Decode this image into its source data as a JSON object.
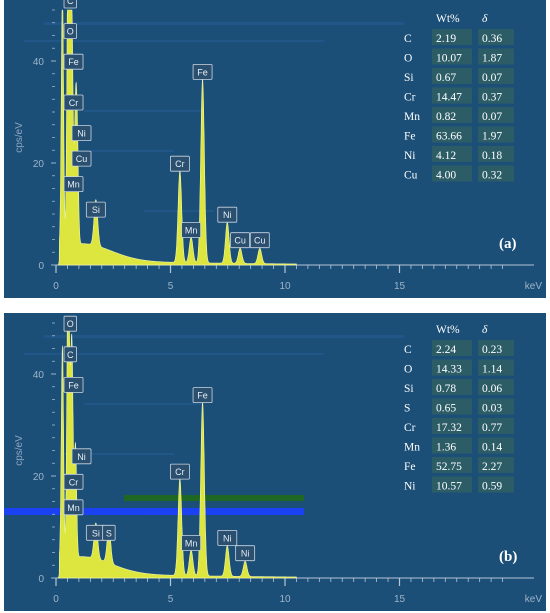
{
  "chart_data": [
    {
      "type": "area",
      "panel_label": "(a)",
      "ylabel": "cps/eV",
      "xunit": "keV",
      "xlim": [
        0,
        20
      ],
      "ylim": [
        0,
        50
      ],
      "x_ticks": [
        "0",
        "5",
        "10",
        "15"
      ],
      "y_ticks": [
        "0",
        "20",
        "40"
      ],
      "grid": false,
      "peaks": [
        {
          "label": "C",
          "x": 0.28,
          "y": 50
        },
        {
          "label": "O",
          "x": 0.52,
          "y": 44
        },
        {
          "label": "Fe",
          "x": 0.7,
          "y": 38
        },
        {
          "label": "Cr",
          "x": 0.57,
          "y": 30
        },
        {
          "label": "Ni",
          "x": 0.85,
          "y": 24
        },
        {
          "label": "Cu",
          "x": 0.93,
          "y": 19
        },
        {
          "label": "Mn",
          "x": 0.64,
          "y": 14
        },
        {
          "label": "Si",
          "x": 1.74,
          "y": 9
        },
        {
          "label": "Cr",
          "x": 5.41,
          "y": 18
        },
        {
          "label": "Mn",
          "x": 5.9,
          "y": 5
        },
        {
          "label": "Fe",
          "x": 6.4,
          "y": 36
        },
        {
          "label": "Ni",
          "x": 7.48,
          "y": 8
        },
        {
          "label": "Cu",
          "x": 8.04,
          "y": 3
        },
        {
          "label": "Cu",
          "x": 8.9,
          "y": 3
        }
      ],
      "legend_table": {
        "headers": [
          "",
          "Wt%",
          "δ"
        ],
        "rows": [
          [
            "C",
            "2.19",
            "0.36"
          ],
          [
            "O",
            "10.07",
            "1.87"
          ],
          [
            "Si",
            "0.67",
            "0.07"
          ],
          [
            "Cr",
            "14.47",
            "0.37"
          ],
          [
            "Mn",
            "0.82",
            "0.07"
          ],
          [
            "Fe",
            "63.66",
            "1.97"
          ],
          [
            "Ni",
            "4.12",
            "0.18"
          ],
          [
            "Cu",
            "4.00",
            "0.32"
          ]
        ]
      }
    },
    {
      "type": "area",
      "panel_label": "(b)",
      "ylabel": "cps/eV",
      "xunit": "keV",
      "xlim": [
        0,
        20
      ],
      "ylim": [
        0,
        50
      ],
      "x_ticks": [
        "0",
        "5",
        "10",
        "15"
      ],
      "y_ticks": [
        "0",
        "20",
        "40"
      ],
      "grid": false,
      "peaks": [
        {
          "label": "O",
          "x": 0.52,
          "y": 48
        },
        {
          "label": "C",
          "x": 0.28,
          "y": 42
        },
        {
          "label": "Fe",
          "x": 0.7,
          "y": 36
        },
        {
          "label": "Ni",
          "x": 0.85,
          "y": 22
        },
        {
          "label": "Cr",
          "x": 0.57,
          "y": 17
        },
        {
          "label": "Mn",
          "x": 0.64,
          "y": 12
        },
        {
          "label": "Si",
          "x": 1.74,
          "y": 7
        },
        {
          "label": "S",
          "x": 2.31,
          "y": 7
        },
        {
          "label": "Cr",
          "x": 5.41,
          "y": 19
        },
        {
          "label": "Fe",
          "x": 6.4,
          "y": 34
        },
        {
          "label": "Mn",
          "x": 5.9,
          "y": 5
        },
        {
          "label": "Ni",
          "x": 7.48,
          "y": 6
        },
        {
          "label": "Ni",
          "x": 8.26,
          "y": 3
        }
      ],
      "legend_table": {
        "headers": [
          "",
          "Wt%",
          "δ"
        ],
        "rows": [
          [
            "C",
            "2.24",
            "0.23"
          ],
          [
            "O",
            "14.33",
            "1.14"
          ],
          [
            "Si",
            "0.78",
            "0.06"
          ],
          [
            "S",
            "0.65",
            "0.03"
          ],
          [
            "Cr",
            "17.32",
            "0.77"
          ],
          [
            "Mn",
            "1.36",
            "0.14"
          ],
          [
            "Fe",
            "52.75",
            "2.27"
          ],
          [
            "Ni",
            "10.57",
            "0.59"
          ]
        ]
      }
    }
  ],
  "colors": {
    "background": "#1b4f78",
    "spectrum": "#e8ef3c",
    "artifact_green": "#1f6a1a",
    "artifact_blue": "#1c40ff"
  }
}
